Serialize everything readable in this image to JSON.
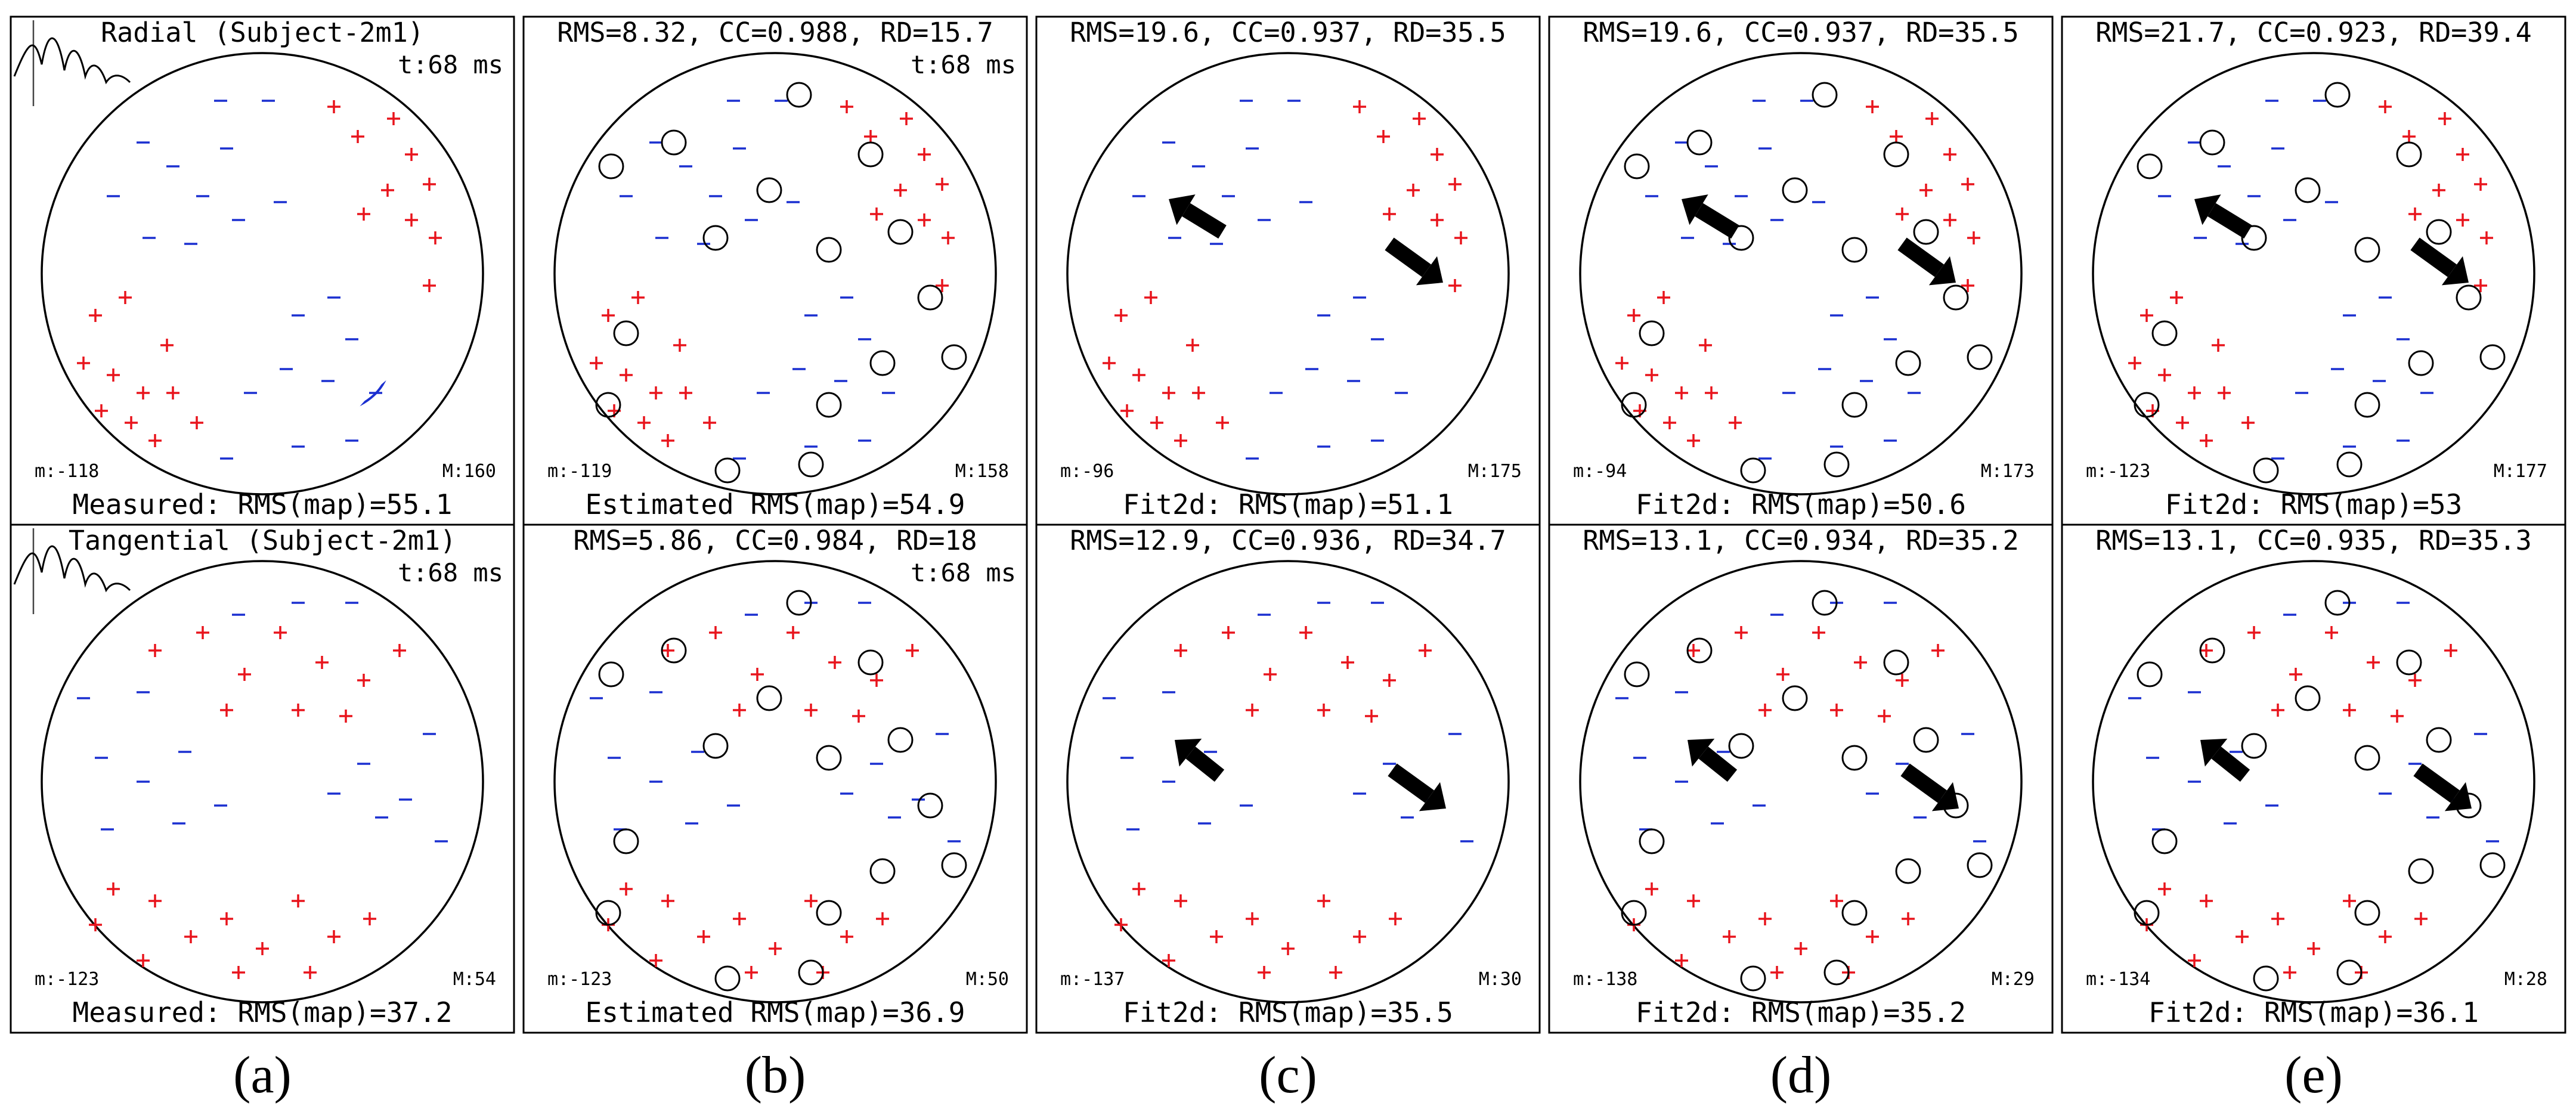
{
  "figure": {
    "colors": {
      "positive": "#e8141c",
      "negative": "#1a2fd0",
      "zero_line": "#19e619",
      "frame": "#000000",
      "arrow": "#000000"
    },
    "column_labels": [
      "(a)",
      "(b)",
      "(c)",
      "(d)",
      "(e)"
    ],
    "rows": [
      {
        "name": "radial",
        "panels": [
          {
            "top": "Radial (Subject-2m1)",
            "time": "t:68 ms",
            "min": "m:-118",
            "max": "M:160",
            "bottom": "Measured: RMS(map)=55.1",
            "waveform": true,
            "circles": 0,
            "arrows": 0
          },
          {
            "top": "RMS=8.32, CC=0.988, RD=15.7",
            "time": "t:68 ms",
            "min": "m:-119",
            "max": "M:158",
            "bottom": "Estimated RMS(map)=54.9",
            "waveform": false,
            "circles": 16,
            "arrows": 0
          },
          {
            "top": "RMS=19.6, CC=0.937, RD=35.5",
            "time": "",
            "min": "m:-96",
            "max": "M:175",
            "bottom": "Fit2d: RMS(map)=51.1",
            "waveform": false,
            "circles": 0,
            "arrows": 2
          },
          {
            "top": "RMS=19.6, CC=0.937, RD=35.5",
            "time": "",
            "min": "m:-94",
            "max": "M:173",
            "bottom": "Fit2d: RMS(map)=50.6",
            "waveform": false,
            "circles": 16,
            "arrows": 2
          },
          {
            "top": "RMS=21.7, CC=0.923, RD=39.4",
            "time": "",
            "min": "m:-123",
            "max": "M:177",
            "bottom": "Fit2d: RMS(map)=53",
            "waveform": false,
            "circles": 16,
            "arrows": 2
          }
        ]
      },
      {
        "name": "tangential",
        "panels": [
          {
            "top": "Tangential (Subject-2m1)",
            "time": "t:68 ms",
            "min": "m:-123",
            "max": "M:54",
            "bottom": "Measured: RMS(map)=37.2",
            "waveform": true,
            "circles": 0,
            "arrows": 0
          },
          {
            "top": "RMS=5.86, CC=0.984, RD=18",
            "time": "t:68 ms",
            "min": "m:-123",
            "max": "M:50",
            "bottom": "Estimated RMS(map)=36.9",
            "waveform": false,
            "circles": 16,
            "arrows": 0
          },
          {
            "top": "RMS=12.9, CC=0.936, RD=34.7",
            "time": "",
            "min": "m:-137",
            "max": "M:30",
            "bottom": "Fit2d: RMS(map)=35.5",
            "waveform": false,
            "circles": 0,
            "arrows": 2
          },
          {
            "top": "RMS=13.1, CC=0.934, RD=35.2",
            "time": "",
            "min": "m:-138",
            "max": "M:29",
            "bottom": "Fit2d: RMS(map)=35.2",
            "waveform": false,
            "circles": 16,
            "arrows": 2
          },
          {
            "top": "RMS=13.1, CC=0.935, RD=35.3",
            "time": "",
            "min": "m:-134",
            "max": "M:28",
            "bottom": "Fit2d: RMS(map)=36.1",
            "waveform": false,
            "circles": 16,
            "arrows": 2
          }
        ]
      }
    ]
  }
}
